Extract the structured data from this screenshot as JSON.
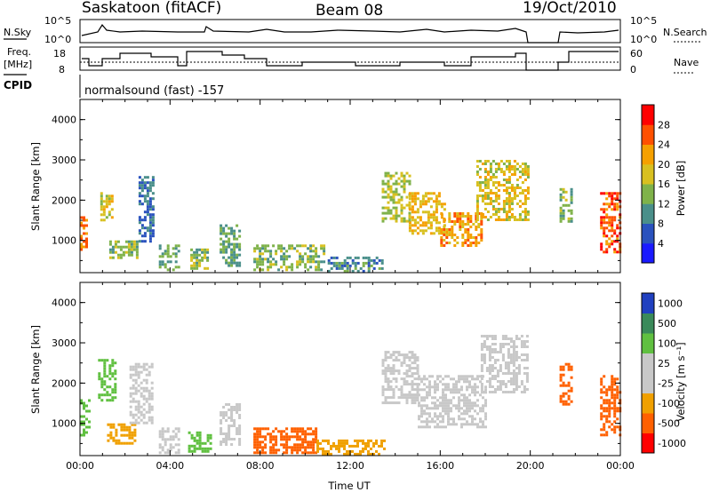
{
  "header": {
    "station": "Saskatoon (fitACF)",
    "beam": "Beam 08",
    "date": "19/Oct/2010"
  },
  "params": {
    "nsky_label": "N.Sky",
    "nsky_top": "10^5",
    "nsky_bottom": "10^0",
    "nsearch_label": "N.Search",
    "nsearch_top": "10^5",
    "nsearch_bottom": "10^0",
    "freq_label_1": "Freq.",
    "freq_label_2": "[MHz]",
    "freq_ticks": [
      "18",
      "8"
    ],
    "nave_label": "Nave",
    "nave_ticks": [
      "60",
      "0"
    ],
    "cpid_label": "CPID",
    "cpid_text": "normalsound (fast) -157"
  },
  "chart_data": [
    {
      "type": "heatmap",
      "name": "power",
      "title": "",
      "xlabel": "Time UT",
      "ylabel": "Slant Range [km]",
      "xlim_hours": [
        0,
        24
      ],
      "ylim_km": [
        200,
        4500
      ],
      "yticks": [
        "1000",
        "2000",
        "3000",
        "4000"
      ],
      "colorbar_label": "Power [dB]",
      "colorbar_ticks": [
        "4",
        "8",
        "12",
        "16",
        "20",
        "24",
        "28"
      ],
      "colors": [
        "#1a1aff",
        "#2a52be",
        "#4a8f8a",
        "#7fb24a",
        "#d8c020",
        "#f5a000",
        "#ff5000",
        "#ff0000"
      ],
      "regions": [
        {
          "t": [
            0.0,
            0.3
          ],
          "r": [
            800,
            1600
          ],
          "v": 24
        },
        {
          "t": [
            0.9,
            1.4
          ],
          "r": [
            1500,
            2200
          ],
          "v": 18
        },
        {
          "t": [
            1.3,
            2.6
          ],
          "r": [
            600,
            1000
          ],
          "v": 14
        },
        {
          "t": [
            2.6,
            3.3
          ],
          "r": [
            1000,
            2600
          ],
          "v": 8
        },
        {
          "t": [
            3.5,
            4.4
          ],
          "r": [
            300,
            900
          ],
          "v": 12
        },
        {
          "t": [
            4.9,
            5.7
          ],
          "r": [
            300,
            800
          ],
          "v": 14
        },
        {
          "t": [
            6.2,
            7.1
          ],
          "r": [
            400,
            1400
          ],
          "v": 12
        },
        {
          "t": [
            7.7,
            10.8
          ],
          "r": [
            300,
            900
          ],
          "v": 14
        },
        {
          "t": [
            11.0,
            13.4
          ],
          "r": [
            250,
            600
          ],
          "v": 10
        },
        {
          "t": [
            13.4,
            14.6
          ],
          "r": [
            1500,
            2700
          ],
          "v": 16
        },
        {
          "t": [
            14.6,
            16.2
          ],
          "r": [
            1200,
            2200
          ],
          "v": 20
        },
        {
          "t": [
            16.0,
            17.8
          ],
          "r": [
            900,
            1700
          ],
          "v": 22
        },
        {
          "t": [
            17.6,
            19.9
          ],
          "r": [
            1500,
            3000
          ],
          "v": 18
        },
        {
          "t": [
            21.3,
            21.8
          ],
          "r": [
            1500,
            2300
          ],
          "v": 14
        },
        {
          "t": [
            23.1,
            24.0
          ],
          "r": [
            700,
            2200
          ],
          "v": 26
        }
      ]
    },
    {
      "type": "heatmap",
      "name": "velocity",
      "title": "",
      "xlabel": "Time UT",
      "ylabel": "Slant Range [km]",
      "xlim_hours": [
        0,
        24
      ],
      "ylim_km": [
        200,
        4500
      ],
      "xticks": [
        "00:00",
        "04:00",
        "08:00",
        "12:00",
        "16:00",
        "20:00",
        "00:00"
      ],
      "yticks": [
        "1000",
        "2000",
        "3000",
        "4000"
      ],
      "colorbar_label": "Velocity [m s⁻¹]",
      "colorbar_ticks": [
        "1000",
        "500",
        "100",
        "25",
        "-25",
        "-100",
        "-500",
        "-1000"
      ],
      "colors": [
        "#2040c0",
        "#3a8a5a",
        "#60c040",
        "#c8c8c8",
        "#c8c8c8",
        "#f0a000",
        "#ff6000",
        "#ff0000"
      ],
      "regions": [
        {
          "t": [
            0.0,
            0.4
          ],
          "r": [
            700,
            1600
          ],
          "v": 100
        },
        {
          "t": [
            0.8,
            1.6
          ],
          "r": [
            1600,
            2600
          ],
          "v": 200
        },
        {
          "t": [
            1.2,
            2.5
          ],
          "r": [
            500,
            1000
          ],
          "v": -100
        },
        {
          "t": [
            2.2,
            3.2
          ],
          "r": [
            1000,
            2500
          ],
          "v": 0
        },
        {
          "t": [
            3.5,
            4.4
          ],
          "r": [
            300,
            900
          ],
          "v": 0
        },
        {
          "t": [
            4.8,
            5.8
          ],
          "r": [
            300,
            800
          ],
          "v": 100
        },
        {
          "t": [
            6.2,
            7.1
          ],
          "r": [
            500,
            1500
          ],
          "v": 0
        },
        {
          "t": [
            7.7,
            10.5
          ],
          "r": [
            300,
            900
          ],
          "v": -200
        },
        {
          "t": [
            10.5,
            13.5
          ],
          "r": [
            250,
            600
          ],
          "v": -100
        },
        {
          "t": [
            13.4,
            15.0
          ],
          "r": [
            1500,
            2800
          ],
          "v": 0
        },
        {
          "t": [
            15.0,
            18.0
          ],
          "r": [
            900,
            2200
          ],
          "v": 0
        },
        {
          "t": [
            17.8,
            19.9
          ],
          "r": [
            1800,
            3200
          ],
          "v": 0
        },
        {
          "t": [
            21.3,
            21.8
          ],
          "r": [
            1500,
            2500
          ],
          "v": -300
        },
        {
          "t": [
            23.1,
            24.0
          ],
          "r": [
            700,
            2200
          ],
          "v": -500
        }
      ]
    }
  ]
}
